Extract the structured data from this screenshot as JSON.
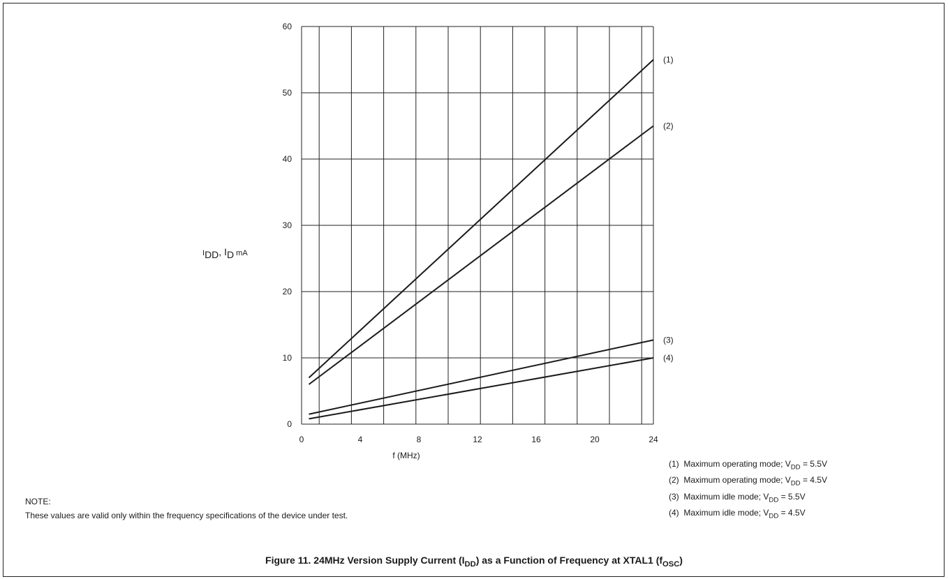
{
  "chart_data": {
    "type": "line",
    "xlabel": "f (MHz)",
    "ylabel_main": "I",
    "ylabel_sub1": "DD",
    "ylabel_sep": ", I",
    "ylabel_sub2": "D",
    "ylabel_unit": " mA",
    "xlim": [
      0,
      24
    ],
    "ylim": [
      0,
      60
    ],
    "x_ticks": [
      0,
      4,
      8,
      12,
      16,
      20,
      24
    ],
    "y_ticks": [
      0,
      10,
      20,
      30,
      40,
      50,
      60
    ],
    "vertical_grid": [
      0,
      1.2,
      3.4,
      5.6,
      7.8,
      10,
      12.2,
      14.4,
      16.6,
      18.8,
      21,
      23.2,
      24
    ],
    "grid": true,
    "series": [
      {
        "label": "(1)",
        "x": [
          0.5,
          24
        ],
        "y": [
          7,
          55
        ]
      },
      {
        "label": "(2)",
        "x": [
          0.5,
          24
        ],
        "y": [
          6,
          45
        ]
      },
      {
        "label": "(3)",
        "x": [
          0.5,
          24
        ],
        "y": [
          1.5,
          12.7
        ]
      },
      {
        "label": "(4)",
        "x": [
          0.5,
          24
        ],
        "y": [
          0.8,
          10
        ]
      }
    ]
  },
  "legend": [
    {
      "num": "(1)",
      "text": "Maximum operating mode; V",
      "sub": "DD",
      "value": " = 5.5V"
    },
    {
      "num": "(2)",
      "text": "Maximum operating mode; V",
      "sub": "DD",
      "value": " = 4.5V"
    },
    {
      "num": "(3)",
      "text": "Maximum idle mode; V",
      "sub": "DD",
      "value": " = 5.5V"
    },
    {
      "num": "(4)",
      "text": "Maximum idle mode; V",
      "sub": "DD",
      "value": " = 4.5V"
    }
  ],
  "note": {
    "title": "NOTE:",
    "text": "These values are valid only within the frequency specifications of the device under test."
  },
  "caption": {
    "part1": "Figure 11.  24MHz Version Supply Current (I",
    "sub1": "DD",
    "part2": ") as a Function of Frequency at XTAL1 (f",
    "sub2": "OSC",
    "part3": ")"
  }
}
